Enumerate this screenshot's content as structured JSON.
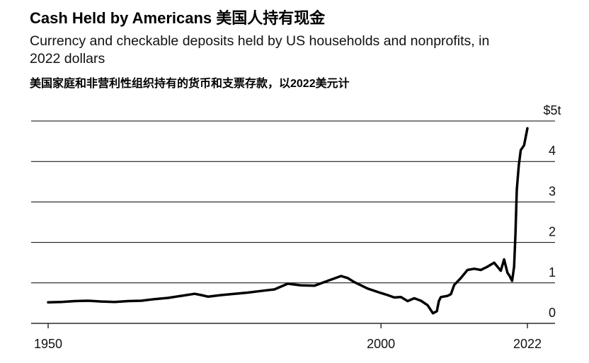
{
  "title": "Cash Held by Americans 美国人持有现金",
  "subtitle": "Currency and checkable deposits held by US households and nonprofits, in 2022 dollars",
  "subtitle_cn": "美国家庭和非营利性组织持有的货币和支票存款，以2022美元计",
  "chart_data": {
    "type": "line",
    "title": "Cash Held by Americans 美国人持有现金",
    "subtitle": "Currency and checkable deposits held by US households and nonprofits, in 2022 dollars",
    "xlabel": "",
    "ylabel": "",
    "xlim": [
      1950,
      2022
    ],
    "ylim": [
      0,
      5
    ],
    "y_unit": "trillion US dollars",
    "y_ticks": [
      0,
      1,
      2,
      3,
      4,
      5
    ],
    "y_tick_labels": [
      "0",
      "1",
      "2",
      "3",
      "4",
      "$5t"
    ],
    "x_ticks": [
      1950,
      2000,
      2022
    ],
    "x_tick_labels": [
      "1950",
      "2000",
      "2022"
    ],
    "grid": true,
    "legend": "none",
    "line_color": "#000000",
    "series": [
      {
        "x": [
          1950,
          1952,
          1954,
          1956,
          1958,
          1960,
          1962,
          1964,
          1966,
          1968,
          1970,
          1972,
          1973,
          1974,
          1976,
          1978,
          1980,
          1982,
          1984,
          1986,
          1987,
          1988,
          1990,
          1992,
          1994,
          1995,
          1996,
          1998,
          2000,
          2001,
          2002,
          2003,
          2004,
          2005,
          2006,
          2007,
          2007.8,
          2008.4,
          2008.7,
          2009,
          2010,
          2010.5,
          2011,
          2012,
          2013,
          2014,
          2015,
          2016,
          2017,
          2018,
          2018.5,
          2019,
          2019.3,
          2019.7,
          2020,
          2020.2,
          2020.4,
          2020.7,
          2021,
          2021.5,
          2022
        ],
        "y": [
          0.52,
          0.53,
          0.55,
          0.56,
          0.54,
          0.53,
          0.55,
          0.56,
          0.6,
          0.63,
          0.68,
          0.73,
          0.7,
          0.66,
          0.7,
          0.73,
          0.76,
          0.8,
          0.84,
          0.98,
          0.96,
          0.94,
          0.93,
          1.05,
          1.17,
          1.12,
          1.02,
          0.86,
          0.75,
          0.7,
          0.64,
          0.65,
          0.55,
          0.62,
          0.56,
          0.45,
          0.25,
          0.3,
          0.55,
          0.65,
          0.68,
          0.72,
          0.95,
          1.12,
          1.32,
          1.35,
          1.32,
          1.4,
          1.5,
          1.3,
          1.58,
          1.25,
          1.18,
          1.05,
          1.4,
          2.2,
          3.3,
          3.9,
          4.28,
          4.4,
          4.82
        ]
      }
    ]
  }
}
